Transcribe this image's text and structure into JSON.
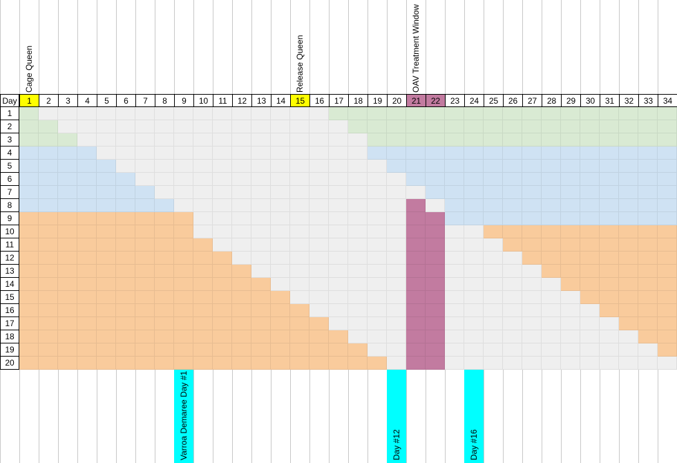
{
  "header_row_label": "Day",
  "day_columns": [
    1,
    2,
    3,
    4,
    5,
    6,
    7,
    8,
    9,
    10,
    11,
    12,
    13,
    14,
    15,
    16,
    17,
    18,
    19,
    20,
    21,
    22,
    23,
    24,
    25,
    26,
    27,
    28,
    29,
    30,
    31,
    32,
    33,
    34
  ],
  "row_days": [
    1,
    2,
    3,
    4,
    5,
    6,
    7,
    8,
    9,
    10,
    11,
    12,
    13,
    14,
    15,
    16,
    17,
    18,
    19,
    20
  ],
  "top_annotations": [
    {
      "text": "Cage Queen",
      "column_day": 1
    },
    {
      "text": "Release Queen",
      "column_day": 15
    },
    {
      "text": "OAV Treatment Window",
      "column_day": 21
    }
  ],
  "bottom_annotations": [
    {
      "text": "Varroa Demaree Day #1",
      "column_day": 9
    },
    {
      "text": "Day #12",
      "column_day": 20
    },
    {
      "text": "Day #16",
      "column_day": 24
    }
  ],
  "highlight_header_days": {
    "yellow": [
      1,
      15
    ],
    "purple": [
      21,
      22
    ]
  },
  "colors": {
    "green": "#d9ead3",
    "blue": "#cfe2f3",
    "orange": "#f9cb9c",
    "gray": "#efefef",
    "purple": "#c27ba0",
    "cyan": "#00ffff",
    "yellow": "#ffff00",
    "grid": "#c8c8c8"
  }
}
